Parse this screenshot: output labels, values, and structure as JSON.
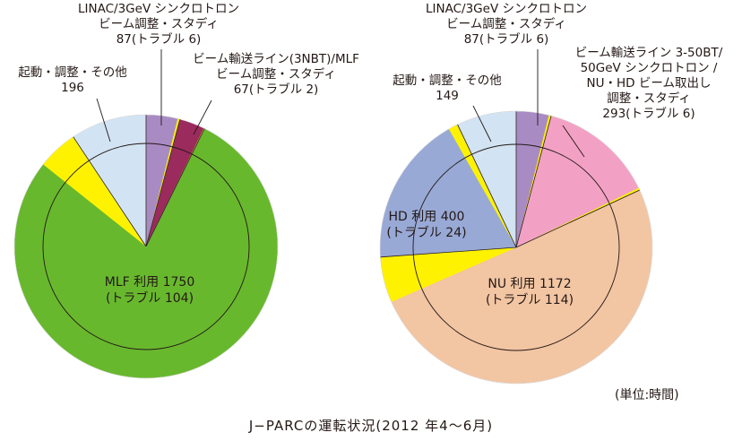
{
  "chart_data": [
    {
      "type": "pie",
      "title": "",
      "slices": [
        {
          "label": "LINAC/3GeV シンクロトロン ビーム調整・スタディ",
          "value": 87,
          "trouble": 6,
          "color": "#a98bc4"
        },
        {
          "label": "ビーム輸送ライン(3NBT)/MLF ビーム調整・スタディ",
          "value": 67,
          "trouble": 2,
          "color": "#9b2a5d"
        },
        {
          "label": "MLF 利用",
          "value": 1750,
          "trouble": 104,
          "color": "#68b82e"
        },
        {
          "label": "起動・調整・その他",
          "value": 196,
          "trouble": 0,
          "color": "#d2e3f3"
        }
      ]
    },
    {
      "type": "pie",
      "title": "",
      "slices": [
        {
          "label": "LINAC/3GeV シンクロトロン ビーム調整・スタディ",
          "value": 87,
          "trouble": 6,
          "color": "#a98bc4"
        },
        {
          "label": "ビーム輸送ライン 3-50BT/ 50GeV シンクロトロン/ NU・HD ビーム取出し 調整・スタディ",
          "value": 293,
          "trouble": 6,
          "color": "#f2a1c4"
        },
        {
          "label": "NU 利用",
          "value": 1172,
          "trouble": 114,
          "color": "#f2c5a3"
        },
        {
          "label": "HD 利用",
          "value": 400,
          "trouble": 24,
          "color": "#98a9d6"
        },
        {
          "label": "起動・調整・その他",
          "value": 149,
          "trouble": 0,
          "color": "#d2e3f3"
        }
      ]
    }
  ],
  "trouble_color": "#fff200",
  "left": {
    "linac": [
      "LINAC/3GeV シンクロトロン",
      "ビーム調整・スタディ",
      "87(トラブル 6)"
    ],
    "bt": [
      "ビーム輸送ライン(3NBT)/MLF",
      "ビーム調整・スタディ",
      "67(トラブル 2)"
    ],
    "other": [
      "起動・調整・その他",
      "196"
    ],
    "mlf": [
      "MLF 利用 1750",
      "(トラブル 104)"
    ]
  },
  "right": {
    "linac": [
      "LINAC/3GeV シンクロトロン",
      "ビーム調整・スタディ",
      "87(トラブル 6)"
    ],
    "bt": [
      "ビーム輸送ライン 3-50BT/",
      "50GeV シンクロトロン /",
      "NU・HD ビーム取出し",
      "調整・スタディ",
      "293(トラブル 6)"
    ],
    "other": [
      "起動・調整・その他",
      "149"
    ],
    "hd": [
      "HD 利用 400",
      "(トラブル 24)"
    ],
    "nu": [
      "NU 利用 1172",
      "(トラブル 114)"
    ]
  },
  "unit": "(単位:時間)",
  "caption": "J−PARCの運転状況(2012 年4〜6月)"
}
